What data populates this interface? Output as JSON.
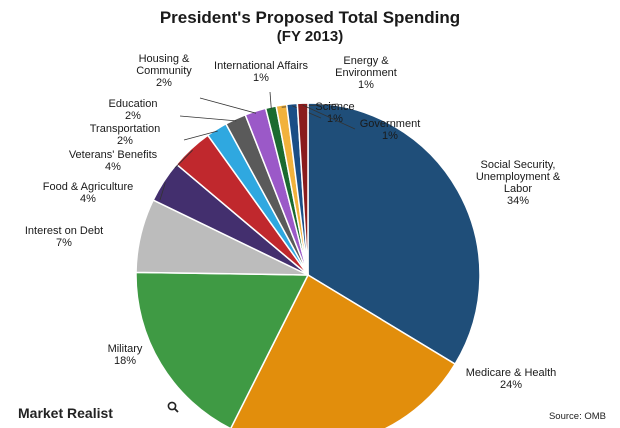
{
  "chart_data": {
    "type": "pie",
    "title": "President's Proposed Total Spending",
    "subtitle": "(FY 2013)",
    "start_angle_deg": 0,
    "direction": "clockwise",
    "slices": [
      {
        "lines": [
          "Social Security,",
          "Unemployment &",
          "Labor",
          "34%"
        ],
        "value": 34,
        "color": "#1f4e79"
      },
      {
        "lines": [
          "Medicare & Health",
          "24%"
        ],
        "value": 24,
        "color": "#e28e0c"
      },
      {
        "lines": [
          "Military",
          "18%"
        ],
        "value": 18,
        "color": "#3f9a44"
      },
      {
        "lines": [
          "Interest on Debt",
          "7%"
        ],
        "value": 7,
        "color": "#bcbcbc"
      },
      {
        "lines": [
          "Food & Agriculture",
          "4%"
        ],
        "value": 4,
        "color": "#432f6e"
      },
      {
        "lines": [
          "Veterans' Benefits",
          "4%"
        ],
        "value": 4,
        "color": "#c0282d"
      },
      {
        "lines": [
          "Transportation",
          "2%"
        ],
        "value": 2,
        "color": "#2fa8e0"
      },
      {
        "lines": [
          "Education",
          "2%"
        ],
        "value": 2,
        "color": "#5a5a5a"
      },
      {
        "lines": [
          "Housing &",
          "Community",
          "2%"
        ],
        "value": 2,
        "color": "#9b59c8"
      },
      {
        "lines": [
          "International Affairs",
          "1%"
        ],
        "value": 1,
        "color": "#1b6a2f"
      },
      {
        "lines": [
          "Energy &",
          "Environment",
          "1%"
        ],
        "value": 1,
        "color": "#f2b23c"
      },
      {
        "lines": [
          "Science",
          "1%"
        ],
        "value": 1,
        "color": "#1a4e86"
      },
      {
        "lines": [
          "Government",
          "1%"
        ],
        "value": 1,
        "color": "#8a1c1c"
      }
    ]
  },
  "footer": {
    "brand": "Market Realist",
    "source": "Source: OMB"
  }
}
